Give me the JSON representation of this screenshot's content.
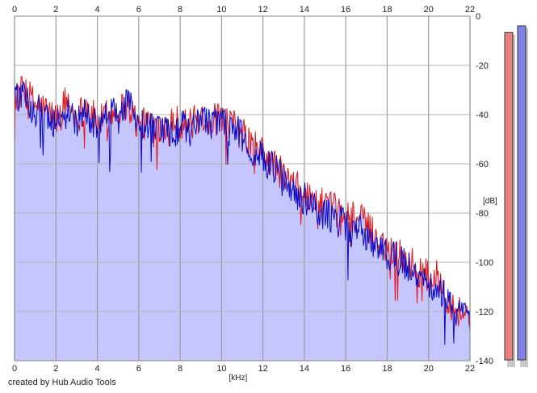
{
  "chart_data": {
    "type": "area",
    "x_unit_label": "[kHz]",
    "y_unit_label": "[dB]",
    "xlim": [
      0,
      22
    ],
    "ylim": [
      -140,
      0
    ],
    "x_ticks": [
      0,
      2,
      4,
      6,
      8,
      10,
      12,
      14,
      16,
      18,
      20,
      22
    ],
    "y_ticks": [
      0,
      -20,
      -40,
      -60,
      -80,
      -100,
      -120,
      -140
    ],
    "grid": true,
    "fill_color": "#c6c6ff",
    "series": [
      {
        "color": "#e01818",
        "x": [
          0,
          0.5,
          1,
          1.5,
          2,
          2.5,
          3,
          3.5,
          4,
          4.5,
          5,
          5.5,
          6,
          6.5,
          7,
          7.5,
          8,
          8.5,
          9,
          9.5,
          10,
          10.5,
          11,
          11.5,
          12,
          12.5,
          13,
          13.5,
          14,
          14.5,
          15,
          15.5,
          16,
          16.5,
          17,
          17.5,
          18,
          18.5,
          19,
          19.5,
          20,
          20.5,
          21,
          21.5,
          22
        ],
        "values": [
          -33,
          -30,
          -36,
          -38,
          -42,
          -34,
          -41,
          -36,
          -44,
          -40,
          -38,
          -36,
          -45,
          -43,
          -45,
          -42,
          -43,
          -44,
          -41,
          -42,
          -42,
          -44,
          -48,
          -52,
          -56,
          -60,
          -65,
          -69,
          -72,
          -76,
          -77,
          -79,
          -81,
          -81,
          -85,
          -90,
          -94,
          -96,
          -99,
          -103,
          -106,
          -106,
          -116,
          -120,
          -122
        ]
      },
      {
        "color": "#0a0ac8",
        "x": [
          0,
          0.5,
          1,
          1.5,
          2,
          2.5,
          3,
          3.5,
          4,
          4.5,
          5,
          5.5,
          6,
          6.5,
          7,
          7.5,
          8,
          8.5,
          9,
          9.5,
          10,
          10.5,
          11,
          11.5,
          12,
          12.5,
          13,
          13.5,
          14,
          14.5,
          15,
          15.5,
          16,
          16.5,
          17,
          17.5,
          18,
          18.5,
          19,
          19.5,
          20,
          20.5,
          21,
          21.5,
          22
        ],
        "values": [
          -32,
          -34,
          -38,
          -40,
          -44,
          -40,
          -42,
          -40,
          -46,
          -40,
          -40,
          -35,
          -44,
          -46,
          -47,
          -48,
          -45,
          -46,
          -44,
          -43,
          -43,
          -45,
          -49,
          -54,
          -58,
          -62,
          -67,
          -71,
          -74,
          -78,
          -80,
          -83,
          -85,
          -85,
          -89,
          -92,
          -96,
          -99,
          -102,
          -106,
          -108,
          -110,
          -118,
          -122,
          -124
        ]
      }
    ],
    "level_meters": [
      {
        "color": "#e88080",
        "level": 0.98
      },
      {
        "color": "#8080e8",
        "level": 1.0
      }
    ]
  },
  "footer": {
    "credit": "created by Hub Audio Tools"
  }
}
